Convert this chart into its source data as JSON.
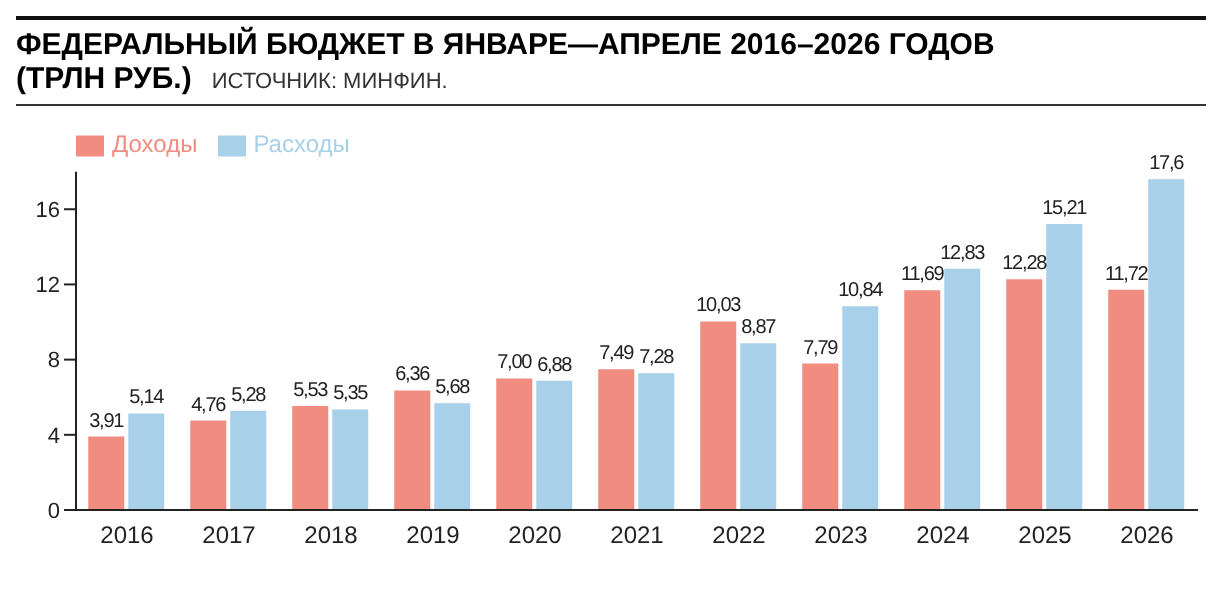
{
  "chart_data": {
    "type": "bar",
    "title": "ФЕДЕРАЛЬНЫЙ БЮДЖЕТ В ЯНВАРЕ—АПРЕЛЕ 2016–2026 ГОДОВ",
    "subtitle": "(ТРЛН РУБ.)",
    "annotations": [
      "ИСТОЧНИК: МИНФИН."
    ],
    "categories": [
      "2016",
      "2017",
      "2018",
      "2019",
      "2020",
      "2021",
      "2022",
      "2023",
      "2024",
      "2025",
      "2026"
    ],
    "series": [
      {
        "name": "Доходы",
        "color": "#f08c80",
        "values": [
          3.91,
          4.76,
          5.53,
          6.36,
          7.0,
          7.49,
          10.03,
          7.79,
          11.69,
          12.28,
          11.72
        ],
        "value_labels": [
          "3,91",
          "4,76",
          "5,53",
          "6,36",
          "7,00",
          "7,49",
          "10,03",
          "7,79",
          "11,69",
          "12,28",
          "11,72"
        ]
      },
      {
        "name": "Расходы",
        "color": "#a8d0e8",
        "values": [
          5.14,
          5.28,
          5.35,
          5.68,
          6.88,
          7.28,
          8.87,
          10.84,
          12.83,
          15.21,
          17.6
        ],
        "value_labels": [
          "5,14",
          "5,28",
          "5,35",
          "5,68",
          "6,88",
          "7,28",
          "8,87",
          "10,84",
          "12,83",
          "15,21",
          "17,6"
        ]
      }
    ],
    "ylim": [
      0,
      18
    ],
    "yticks": [
      0,
      4,
      8,
      12,
      16
    ],
    "legend": "top left"
  }
}
